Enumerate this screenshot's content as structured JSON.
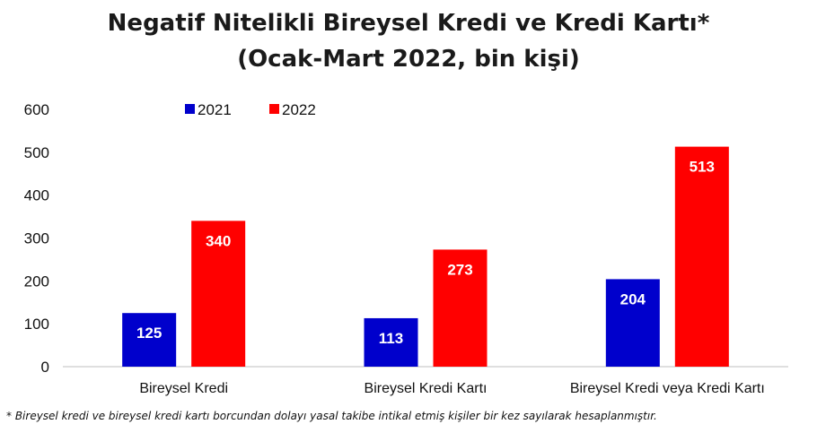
{
  "title_line1": "Negatif Nitelikli Bireysel Kredi ve Kredi Kartı*",
  "title_line2": "(Ocak-Mart 2022, bin kişi)",
  "footnote": "* Bireysel kredi ve bireysel kredi kartı borcundan dolayı yasal takibe intikal etmiş kişiler bir kez sayılarak hesaplanmıştır.",
  "chart_data": {
    "type": "bar",
    "title": "Negatif Nitelikli Bireysel Kredi ve Kredi Kartı*",
    "subtitle": "(Ocak-Mart 2022, bin kişi)",
    "categories": [
      "Bireysel Kredi",
      "Bireysel Kredi Kartı",
      "Bireysel Kredi veya Kredi Kartı"
    ],
    "series": [
      {
        "name": "2021",
        "color": "#0000cc",
        "values": [
          125,
          113,
          204
        ]
      },
      {
        "name": "2022",
        "color": "#ff0000",
        "values": [
          340,
          273,
          513
        ]
      }
    ],
    "ylim": [
      0,
      600
    ],
    "yticks": [
      0,
      100,
      200,
      300,
      400,
      500,
      600
    ],
    "grid": false,
    "legend": "top-left",
    "data_labels": true
  }
}
